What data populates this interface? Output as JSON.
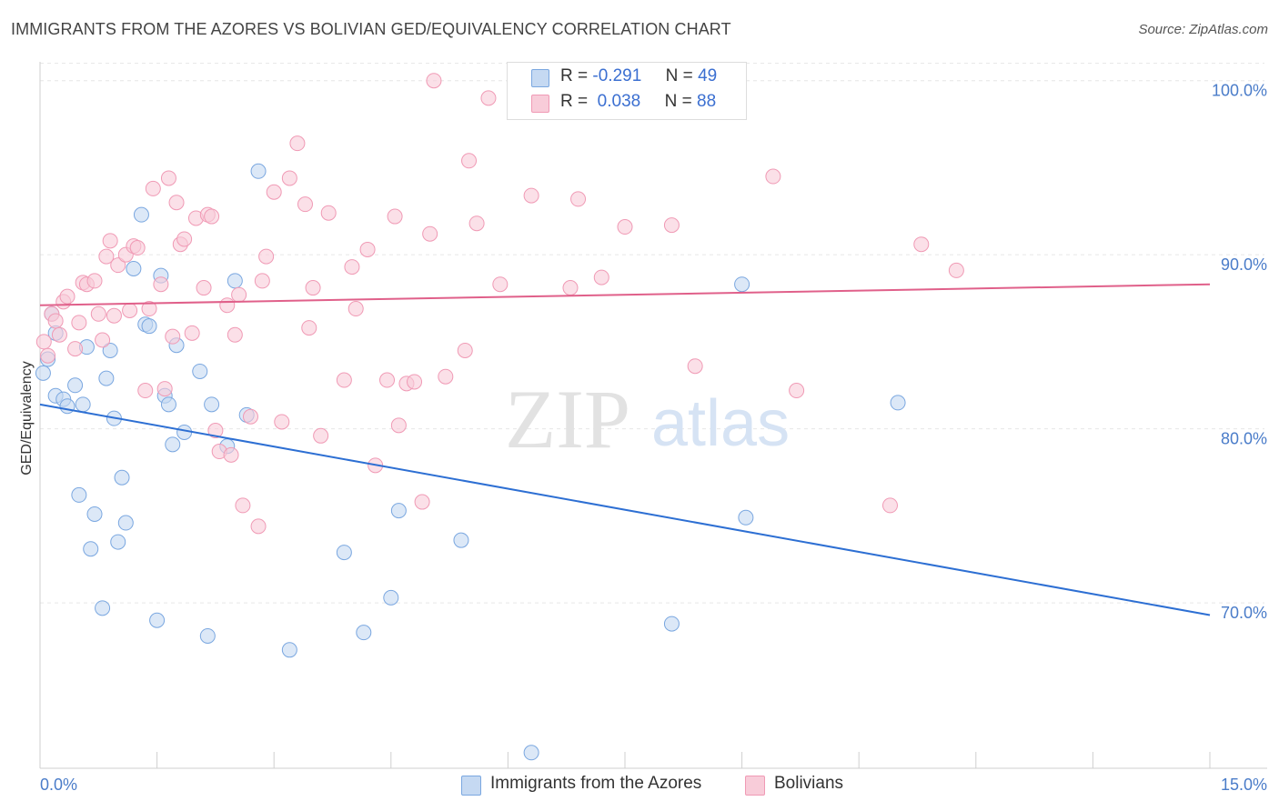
{
  "header": {
    "title": "IMMIGRANTS FROM THE AZORES VS BOLIVIAN GED/EQUIVALENCY CORRELATION CHART",
    "source": "Source: ZipAtlas.com"
  },
  "legend": {
    "rows": [
      {
        "r_label": "R =",
        "r_value": "-0.291",
        "n_label": "N =",
        "n_value": "49"
      },
      {
        "r_label": "R =",
        "r_value": "0.038",
        "n_label": "N =",
        "n_value": "88"
      }
    ]
  },
  "watermark": {
    "zip": "ZIP",
    "atlas": "atlas"
  },
  "chart_data": {
    "type": "scatter",
    "ylabel": "GED/Equivalency",
    "xlim": [
      0,
      15
    ],
    "ylim": [
      60.5,
      101.5
    ],
    "x_tick_labels": [
      {
        "x": 0,
        "label": "0.0%"
      },
      {
        "x": 15,
        "label": "15.0%"
      }
    ],
    "y_tick_labels": [
      {
        "y": 100,
        "label": "100.0%"
      },
      {
        "y": 90,
        "label": "90.0%"
      },
      {
        "y": 80,
        "label": "80.0%"
      },
      {
        "y": 70,
        "label": "70.0%"
      }
    ],
    "grid": true,
    "legend_position": "top-center",
    "series": [
      {
        "name": "Immigrants from the Azores",
        "color": "#7aa7e0",
        "fill": "#c5d9f2",
        "trend": {
          "x": [
            0,
            15
          ],
          "y": [
            81.4,
            69.3
          ],
          "color": "#2d6fd3"
        },
        "points": [
          [
            0.04,
            83.2
          ],
          [
            0.1,
            84.0
          ],
          [
            0.15,
            86.6
          ],
          [
            0.2,
            85.5
          ],
          [
            0.2,
            81.9
          ],
          [
            0.3,
            81.7
          ],
          [
            0.35,
            81.3
          ],
          [
            0.45,
            82.5
          ],
          [
            0.5,
            76.2
          ],
          [
            0.55,
            81.4
          ],
          [
            0.6,
            84.7
          ],
          [
            0.65,
            73.1
          ],
          [
            0.7,
            75.1
          ],
          [
            0.8,
            69.7
          ],
          [
            0.85,
            82.9
          ],
          [
            0.9,
            84.5
          ],
          [
            0.95,
            80.6
          ],
          [
            1.0,
            73.5
          ],
          [
            1.05,
            77.2
          ],
          [
            1.1,
            74.6
          ],
          [
            1.2,
            89.2
          ],
          [
            1.3,
            92.3
          ],
          [
            1.35,
            86.0
          ],
          [
            1.4,
            85.9
          ],
          [
            1.5,
            69.0
          ],
          [
            1.55,
            88.8
          ],
          [
            1.6,
            81.9
          ],
          [
            1.65,
            81.4
          ],
          [
            1.7,
            79.1
          ],
          [
            1.75,
            84.8
          ],
          [
            1.85,
            79.8
          ],
          [
            2.05,
            83.3
          ],
          [
            2.15,
            68.1
          ],
          [
            2.2,
            81.4
          ],
          [
            2.4,
            79.0
          ],
          [
            2.5,
            88.5
          ],
          [
            2.65,
            80.8
          ],
          [
            2.8,
            94.8
          ],
          [
            3.2,
            67.3
          ],
          [
            3.9,
            72.9
          ],
          [
            4.15,
            68.3
          ],
          [
            4.5,
            70.3
          ],
          [
            4.6,
            75.3
          ],
          [
            5.4,
            73.6
          ],
          [
            6.3,
            61.4
          ],
          [
            8.1,
            68.8
          ],
          [
            9.0,
            88.3
          ],
          [
            9.05,
            74.9
          ],
          [
            11.0,
            81.5
          ]
        ]
      },
      {
        "name": "Bolivians",
        "color": "#f09ab5",
        "fill": "#f8ccd9",
        "trend": {
          "x": [
            0,
            15
          ],
          "y": [
            87.1,
            88.3
          ],
          "color": "#e0608a"
        },
        "points": [
          [
            0.05,
            85.0
          ],
          [
            0.1,
            84.2
          ],
          [
            0.15,
            86.6
          ],
          [
            0.2,
            86.2
          ],
          [
            0.25,
            85.4
          ],
          [
            0.3,
            87.3
          ],
          [
            0.35,
            87.6
          ],
          [
            0.45,
            84.6
          ],
          [
            0.5,
            86.1
          ],
          [
            0.55,
            88.4
          ],
          [
            0.6,
            88.3
          ],
          [
            0.7,
            88.5
          ],
          [
            0.75,
            86.6
          ],
          [
            0.8,
            85.1
          ],
          [
            0.85,
            89.9
          ],
          [
            0.9,
            90.8
          ],
          [
            0.95,
            86.5
          ],
          [
            1.0,
            89.4
          ],
          [
            1.1,
            90.0
          ],
          [
            1.15,
            86.8
          ],
          [
            1.2,
            90.5
          ],
          [
            1.25,
            90.4
          ],
          [
            1.35,
            82.2
          ],
          [
            1.4,
            86.9
          ],
          [
            1.45,
            93.8
          ],
          [
            1.55,
            88.3
          ],
          [
            1.6,
            82.3
          ],
          [
            1.65,
            94.4
          ],
          [
            1.7,
            85.3
          ],
          [
            1.75,
            93.0
          ],
          [
            1.8,
            90.6
          ],
          [
            1.85,
            90.9
          ],
          [
            1.95,
            85.5
          ],
          [
            2.0,
            92.1
          ],
          [
            2.1,
            88.1
          ],
          [
            2.15,
            92.3
          ],
          [
            2.2,
            92.2
          ],
          [
            2.25,
            79.9
          ],
          [
            2.3,
            78.7
          ],
          [
            2.4,
            87.1
          ],
          [
            2.45,
            78.5
          ],
          [
            2.5,
            85.4
          ],
          [
            2.55,
            87.7
          ],
          [
            2.6,
            75.6
          ],
          [
            2.7,
            80.7
          ],
          [
            2.8,
            74.4
          ],
          [
            2.85,
            88.5
          ],
          [
            2.9,
            89.9
          ],
          [
            3.0,
            93.6
          ],
          [
            3.1,
            80.4
          ],
          [
            3.2,
            94.4
          ],
          [
            3.3,
            96.4
          ],
          [
            3.4,
            92.9
          ],
          [
            3.45,
            85.8
          ],
          [
            3.5,
            88.1
          ],
          [
            3.6,
            79.6
          ],
          [
            3.7,
            92.4
          ],
          [
            3.9,
            82.8
          ],
          [
            4.0,
            89.3
          ],
          [
            4.05,
            86.9
          ],
          [
            4.2,
            90.3
          ],
          [
            4.3,
            77.9
          ],
          [
            4.45,
            82.8
          ],
          [
            4.55,
            92.2
          ],
          [
            4.6,
            80.2
          ],
          [
            4.7,
            82.6
          ],
          [
            4.8,
            82.7
          ],
          [
            4.9,
            75.8
          ],
          [
            5.0,
            91.2
          ],
          [
            5.05,
            100.0
          ],
          [
            5.2,
            83.0
          ],
          [
            5.45,
            84.5
          ],
          [
            5.5,
            95.4
          ],
          [
            5.6,
            91.8
          ],
          [
            5.75,
            99.0
          ],
          [
            5.9,
            88.3
          ],
          [
            6.3,
            93.4
          ],
          [
            6.8,
            88.1
          ],
          [
            6.9,
            93.2
          ],
          [
            7.2,
            88.7
          ],
          [
            7.5,
            91.6
          ],
          [
            8.1,
            91.7
          ],
          [
            8.4,
            83.6
          ],
          [
            9.4,
            94.5
          ],
          [
            9.7,
            82.2
          ],
          [
            10.9,
            75.6
          ],
          [
            11.3,
            90.6
          ],
          [
            11.75,
            89.1
          ]
        ]
      }
    ]
  }
}
